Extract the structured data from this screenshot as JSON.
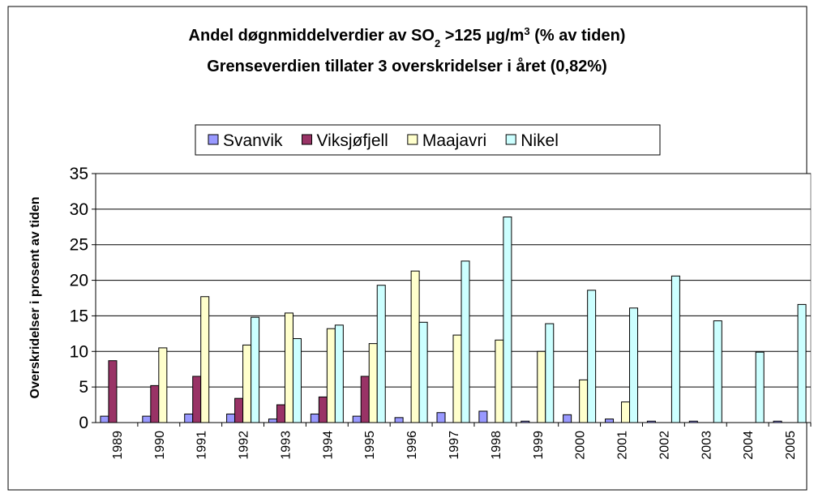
{
  "chart_data": {
    "type": "bar",
    "title": [
      "Andel døgnmiddelverdier av SO",
      "2",
      " >125 µg/m",
      "3",
      "  (% av tiden)"
    ],
    "subtitle": "Grenseverdien tillater 3 overskridelser i året (0,82%)",
    "y_label": "Overskridelser i prosent av tiden",
    "categories": [
      "1989",
      "1990",
      "1991",
      "1992",
      "1993",
      "1994",
      "1995",
      "1996",
      "1997",
      "1998",
      "1999",
      "2000",
      "2001",
      "2002",
      "2003",
      "2004",
      "2005"
    ],
    "series": [
      {
        "name": "Svanvik",
        "color": "#9999ff",
        "values": [
          0.9,
          0.9,
          1.2,
          1.2,
          0.5,
          1.2,
          0.9,
          0.7,
          1.4,
          1.6,
          0.2,
          1.1,
          0.5,
          0.2,
          0.2,
          null,
          0.2
        ]
      },
      {
        "name": "Viksjøfjell",
        "color": "#993366",
        "values": [
          8.7,
          5.2,
          6.5,
          3.4,
          2.5,
          3.6,
          6.5,
          null,
          null,
          null,
          null,
          null,
          null,
          null,
          null,
          null,
          null
        ]
      },
      {
        "name": "Maajavri",
        "color": "#ffffcc",
        "values": [
          null,
          10.5,
          17.7,
          10.9,
          15.4,
          13.2,
          11.1,
          21.3,
          12.3,
          11.6,
          10.0,
          6.0,
          2.9,
          null,
          null,
          null,
          null
        ]
      },
      {
        "name": "Nikel",
        "color": "#ccffff",
        "values": [
          null,
          null,
          null,
          14.8,
          11.8,
          13.7,
          19.3,
          14.1,
          22.7,
          28.9,
          13.9,
          18.6,
          16.1,
          20.6,
          14.3,
          9.9,
          16.6
        ]
      }
    ],
    "ylim": [
      0,
      35
    ],
    "yticks": [
      0,
      5,
      10,
      15,
      20,
      25,
      30,
      35
    ],
    "grid": true
  }
}
